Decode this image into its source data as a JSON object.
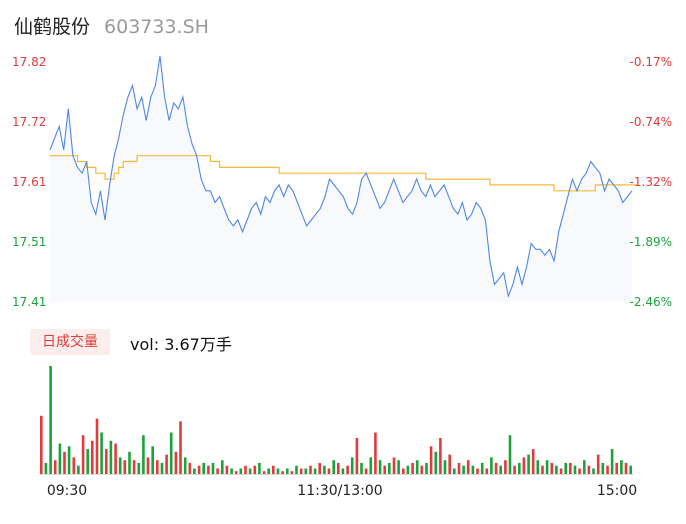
{
  "header": {
    "name": "仙鹤股份",
    "code": "603733.SH"
  },
  "volume_panel": {
    "tag": "日成交量",
    "label": "vol:",
    "value": "3.67万手"
  },
  "colors": {
    "price_line": "#4f86e8",
    "avg_line": "#f6b93b",
    "up": "#e23b3b",
    "down": "#1aa33a",
    "area": "#f7f9fd"
  },
  "chart_data": [
    {
      "type": "line",
      "title": "",
      "ylim": [
        17.41,
        17.82
      ],
      "y_ticks_left": [
        "17.82",
        "17.72",
        "17.61",
        "17.51",
        "17.41"
      ],
      "y_ticks_right": [
        "-0.17%",
        "-0.74%",
        "-1.32%",
        "-1.89%",
        "-2.46%"
      ],
      "x_ticks": [
        "09:30",
        "11:30/13:00",
        "15:00"
      ],
      "series": [
        {
          "key": "price",
          "values": [
            17.67,
            17.69,
            17.71,
            17.67,
            17.74,
            17.66,
            17.64,
            17.63,
            17.65,
            17.58,
            17.56,
            17.6,
            17.55,
            17.61,
            17.66,
            17.69,
            17.73,
            17.76,
            17.78,
            17.74,
            17.76,
            17.72,
            17.76,
            17.78,
            17.83,
            17.76,
            17.72,
            17.75,
            17.74,
            17.76,
            17.71,
            17.68,
            17.66,
            17.62,
            17.6,
            17.6,
            17.58,
            17.59,
            17.57,
            17.55,
            17.54,
            17.55,
            17.53,
            17.55,
            17.57,
            17.58,
            17.56,
            17.59,
            17.58,
            17.6,
            17.61,
            17.59,
            17.61,
            17.6,
            17.58,
            17.56,
            17.54,
            17.55,
            17.56,
            17.57,
            17.59,
            17.62,
            17.61,
            17.6,
            17.59,
            17.57,
            17.56,
            17.58,
            17.62,
            17.63,
            17.61,
            17.59,
            17.57,
            17.58,
            17.6,
            17.62,
            17.6,
            17.58,
            17.59,
            17.6,
            17.62,
            17.6,
            17.59,
            17.61,
            17.59,
            17.6,
            17.61,
            17.59,
            17.57,
            17.56,
            17.58,
            17.55,
            17.56,
            17.58,
            17.57,
            17.55,
            17.48,
            17.44,
            17.45,
            17.46,
            17.42,
            17.44,
            17.47,
            17.44,
            17.47,
            17.51,
            17.5,
            17.5,
            17.49,
            17.5,
            17.48,
            17.53,
            17.56,
            17.59,
            17.62,
            17.6,
            17.62,
            17.63,
            17.65,
            17.64,
            17.63,
            17.6,
            17.62,
            17.61,
            17.6,
            17.58,
            17.59,
            17.6
          ]
        },
        {
          "key": "average",
          "values": [
            17.66,
            17.66,
            17.66,
            17.66,
            17.66,
            17.66,
            17.65,
            17.65,
            17.64,
            17.64,
            17.63,
            17.63,
            17.62,
            17.62,
            17.63,
            17.64,
            17.65,
            17.65,
            17.65,
            17.66,
            17.66,
            17.66,
            17.66,
            17.66,
            17.66,
            17.66,
            17.66,
            17.66,
            17.66,
            17.66,
            17.66,
            17.66,
            17.66,
            17.66,
            17.66,
            17.65,
            17.65,
            17.64,
            17.64,
            17.64,
            17.64,
            17.64,
            17.64,
            17.64,
            17.64,
            17.64,
            17.64,
            17.64,
            17.64,
            17.64,
            17.63,
            17.63,
            17.63,
            17.63,
            17.63,
            17.63,
            17.63,
            17.63,
            17.63,
            17.63,
            17.63,
            17.63,
            17.63,
            17.63,
            17.63,
            17.63,
            17.63,
            17.63,
            17.63,
            17.63,
            17.63,
            17.63,
            17.63,
            17.63,
            17.63,
            17.63,
            17.63,
            17.63,
            17.63,
            17.63,
            17.63,
            17.63,
            17.62,
            17.62,
            17.62,
            17.62,
            17.62,
            17.62,
            17.62,
            17.62,
            17.62,
            17.62,
            17.62,
            17.62,
            17.62,
            17.62,
            17.61,
            17.61,
            17.61,
            17.61,
            17.61,
            17.61,
            17.61,
            17.61,
            17.61,
            17.61,
            17.61,
            17.61,
            17.61,
            17.61,
            17.6,
            17.6,
            17.6,
            17.6,
            17.6,
            17.6,
            17.6,
            17.6,
            17.6,
            17.61,
            17.61,
            17.61,
            17.61,
            17.61,
            17.61,
            17.61,
            17.61,
            17.61,
            17.61
          ]
        }
      ]
    },
    {
      "type": "bar",
      "title": "日成交量",
      "series": [
        {
          "key": "volume",
          "values": [
            2.1,
            0.4,
            3.9,
            0.5,
            1.1,
            0.8,
            1.0,
            0.6,
            0.3,
            1.4,
            0.9,
            1.2,
            2.0,
            1.5,
            0.9,
            1.2,
            1.1,
            0.6,
            0.5,
            0.8,
            0.5,
            0.4,
            1.4,
            0.6,
            1.0,
            0.5,
            0.4,
            0.7,
            1.5,
            0.8,
            1.9,
            0.6,
            0.4,
            0.2,
            0.3,
            0.4,
            0.3,
            0.4,
            0.2,
            0.5,
            0.3,
            0.2,
            0.1,
            0.2,
            0.3,
            0.2,
            0.3,
            0.4,
            0.1,
            0.2,
            0.3,
            0.2,
            0.1,
            0.2,
            0.1,
            0.3,
            0.2,
            0.2,
            0.3,
            0.2,
            0.4,
            0.3,
            0.2,
            0.5,
            0.4,
            0.2,
            0.3,
            0.6,
            1.3,
            0.4,
            0.2,
            0.6,
            1.5,
            0.5,
            0.3,
            0.4,
            0.6,
            0.5,
            0.2,
            0.3,
            0.4,
            0.5,
            0.3,
            0.4,
            1.0,
            0.8,
            1.3,
            0.5,
            0.7,
            0.2,
            0.4,
            0.3,
            0.5,
            0.3,
            0.2,
            0.4,
            0.2,
            0.6,
            0.4,
            0.3,
            0.5,
            1.4,
            0.3,
            0.4,
            0.6,
            0.7,
            0.9,
            0.5,
            0.3,
            0.5,
            0.4,
            0.3,
            0.2,
            0.4,
            0.4,
            0.3,
            0.2,
            0.5,
            0.3,
            0.2,
            0.7,
            0.4,
            0.3,
            0.9,
            0.4,
            0.5,
            0.4,
            0.3
          ],
          "up": [
            true,
            false,
            false,
            true,
            false,
            true,
            false,
            true,
            false,
            true,
            false,
            true,
            true,
            false,
            true,
            false,
            true,
            false,
            true,
            false,
            true,
            false,
            false,
            true,
            false,
            true,
            false,
            true,
            false,
            true,
            true,
            false,
            true,
            false,
            true,
            false,
            true,
            false,
            true,
            false,
            true,
            false,
            true,
            false,
            true,
            false,
            true,
            false,
            true,
            false,
            true,
            false,
            true,
            false,
            true,
            false,
            true,
            false,
            true,
            false,
            true,
            false,
            true,
            false,
            true,
            false,
            true,
            false,
            true,
            false,
            true,
            false,
            true,
            false,
            true,
            false,
            true,
            false,
            true,
            false,
            true,
            false,
            true,
            false,
            true,
            false,
            true,
            false,
            true,
            false,
            true,
            false,
            true,
            false,
            true,
            false,
            true,
            false,
            true,
            false,
            true,
            false,
            true,
            false,
            true,
            false,
            true,
            false,
            true,
            false,
            true,
            false,
            true,
            false,
            true,
            false,
            true,
            false,
            true,
            false,
            true,
            false,
            true,
            false,
            true,
            false,
            true,
            false,
            false
          ]
        }
      ]
    }
  ]
}
